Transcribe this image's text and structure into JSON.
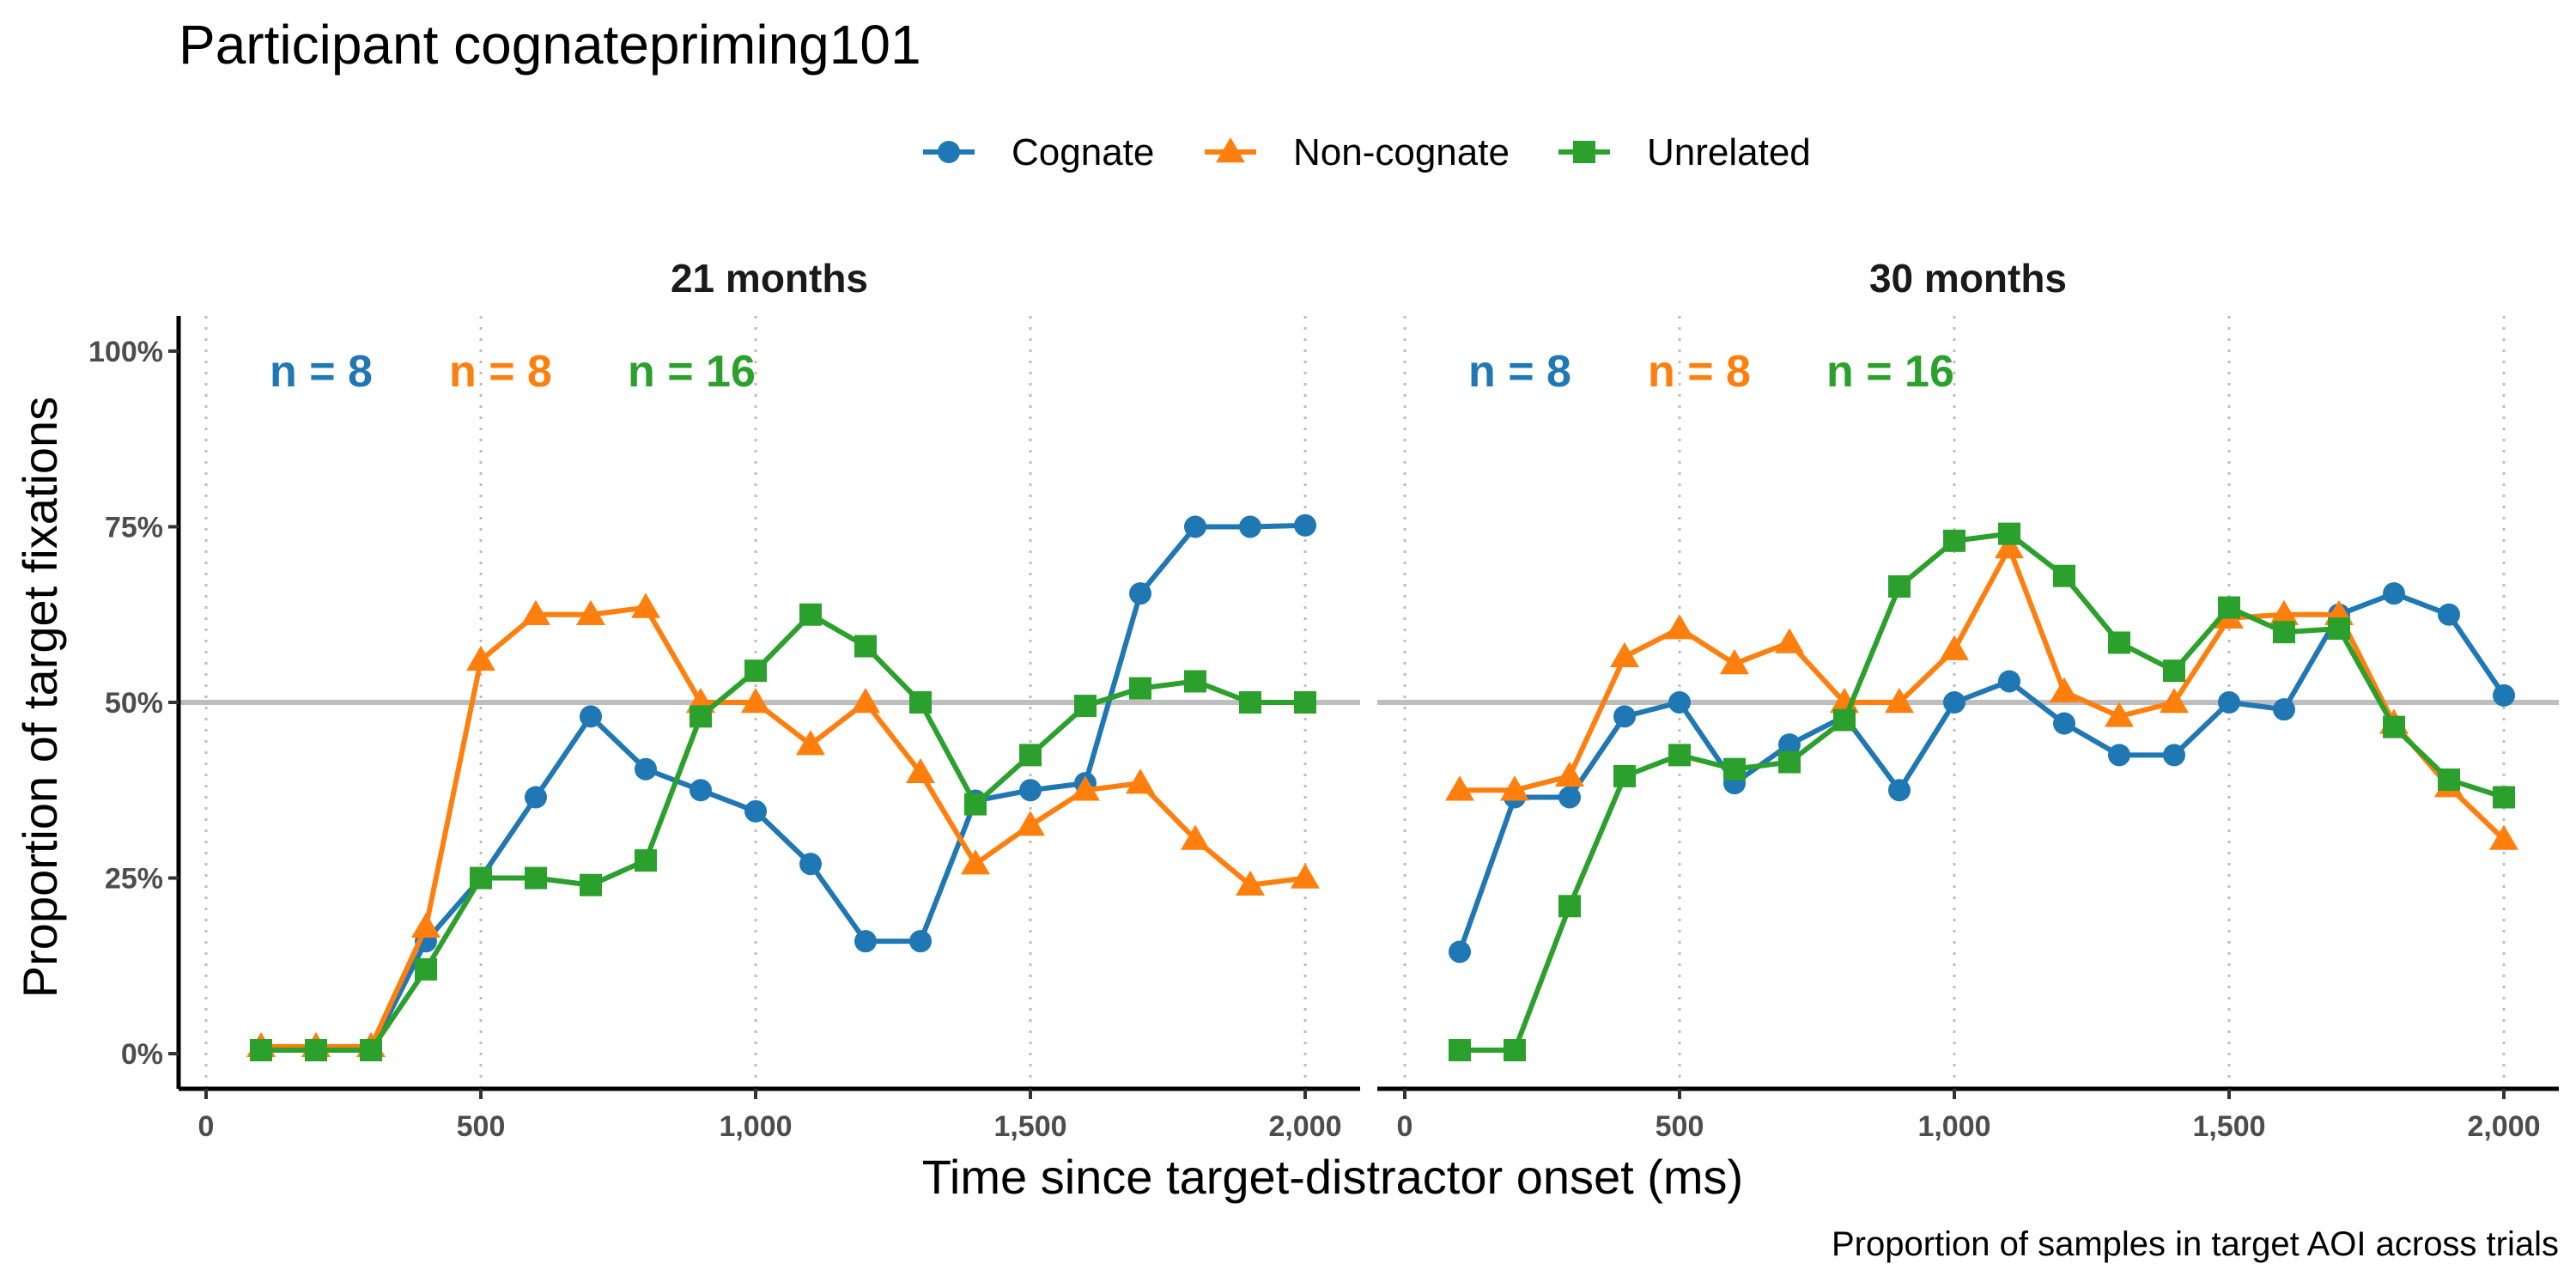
{
  "chart_data": {
    "type": "line",
    "title": "Participant cognatepriming101",
    "xlabel": "Time since target-distractor onset (ms)",
    "ylabel": "Proportion of target fixations",
    "caption": "Proportion of samples in target AOI across trials",
    "xlim": [
      -50,
      2100
    ],
    "ylim": [
      -0.05,
      1.05
    ],
    "x_ticks": [
      0,
      500,
      1000,
      1500,
      2000
    ],
    "x_tick_labels": [
      "0",
      "500",
      "1,000",
      "1,500",
      "2,000"
    ],
    "y_ticks": [
      0,
      0.25,
      0.5,
      0.75,
      1
    ],
    "y_tick_labels": [
      "0%",
      "25%",
      "50%",
      "75%",
      "100%"
    ],
    "reference_line_y": 0.5,
    "grid": "dotted vertical lines at 0, 500, 1000, 1500, 2000",
    "legend_position": "top",
    "legend": [
      {
        "name": "Cognate",
        "color": "#1f77b4",
        "marker": "circle"
      },
      {
        "name": "Non-cognate",
        "color": "#ff7f0e",
        "marker": "triangle"
      },
      {
        "name": "Unrelated",
        "color": "#2ca02c",
        "marker": "square"
      }
    ],
    "x": [
      100,
      200,
      300,
      400,
      500,
      600,
      700,
      800,
      900,
      1000,
      1100,
      1200,
      1300,
      1400,
      1500,
      1600,
      1700,
      1800,
      1900,
      2000
    ],
    "panels": [
      {
        "title": "21 months",
        "n_labels": [
          {
            "text": "n = 8",
            "color": "#1f77b4"
          },
          {
            "text": "n = 8",
            "color": "#ff7f0e"
          },
          {
            "text": "n = 16",
            "color": "#2ca02c"
          }
        ],
        "series": [
          {
            "name": "Cognate",
            "color": "#1f77b4",
            "marker": "circle",
            "values": [
              0.005,
              0.005,
              0.005,
              0.16,
              0.25,
              0.365,
              0.48,
              0.405,
              0.375,
              0.345,
              0.27,
              0.16,
              0.16,
              0.36,
              0.375,
              0.385,
              0.655,
              0.75,
              0.75,
              0.752
            ]
          },
          {
            "name": "Non-cognate",
            "color": "#ff7f0e",
            "marker": "triangle",
            "values": [
              0.01,
              0.01,
              0.01,
              0.18,
              0.56,
              0.625,
              0.625,
              0.635,
              0.5,
              0.5,
              0.44,
              0.5,
              0.4,
              0.27,
              0.325,
              0.375,
              0.385,
              0.305,
              0.24,
              0.25
            ]
          },
          {
            "name": "Unrelated",
            "color": "#2ca02c",
            "marker": "square",
            "values": [
              0.005,
              0.005,
              0.005,
              0.12,
              0.25,
              0.25,
              0.24,
              0.275,
              0.48,
              0.545,
              0.625,
              0.58,
              0.5,
              0.355,
              0.425,
              0.495,
              0.52,
              0.53,
              0.5,
              0.5
            ]
          }
        ]
      },
      {
        "title": "30 months",
        "n_labels": [
          {
            "text": "n = 8",
            "color": "#1f77b4"
          },
          {
            "text": "n = 8",
            "color": "#ff7f0e"
          },
          {
            "text": "n = 16",
            "color": "#2ca02c"
          }
        ],
        "series": [
          {
            "name": "Cognate",
            "color": "#1f77b4",
            "marker": "circle",
            "values": [
              0.145,
              0.365,
              0.365,
              0.48,
              0.5,
              0.385,
              0.44,
              0.48,
              0.375,
              0.5,
              0.53,
              0.47,
              0.425,
              0.425,
              0.5,
              0.49,
              0.625,
              0.655,
              0.625,
              0.51
            ]
          },
          {
            "name": "Non-cognate",
            "color": "#ff7f0e",
            "marker": "triangle",
            "values": [
              0.375,
              0.375,
              0.395,
              0.565,
              0.605,
              0.555,
              0.585,
              0.5,
              0.5,
              0.575,
              0.72,
              0.515,
              0.48,
              0.5,
              0.62,
              0.625,
              0.625,
              0.47,
              0.38,
              0.305
            ]
          },
          {
            "name": "Unrelated",
            "color": "#2ca02c",
            "marker": "square",
            "values": [
              0.005,
              0.005,
              0.21,
              0.395,
              0.425,
              0.405,
              0.415,
              0.475,
              0.665,
              0.73,
              0.74,
              0.68,
              0.585,
              0.545,
              0.635,
              0.6,
              0.605,
              0.465,
              0.39,
              0.365
            ]
          }
        ]
      }
    ]
  }
}
